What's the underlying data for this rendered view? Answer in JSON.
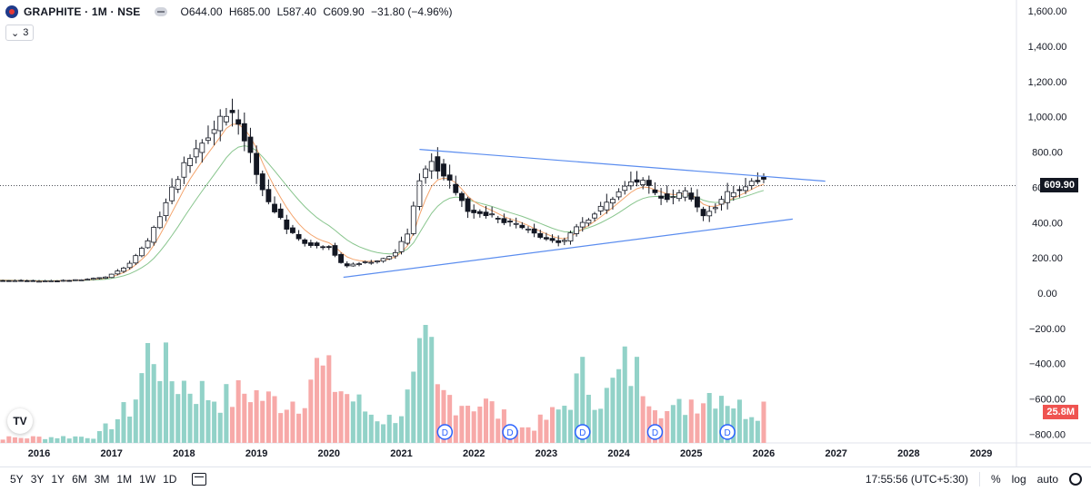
{
  "header": {
    "symbol": "GRAPHITE · 1M · NSE",
    "open": "O644.00",
    "high": "H685.00",
    "low": "L587.40",
    "close": "C609.90",
    "change": "−31.80 (−4.96%)",
    "indicators_count": "3"
  },
  "price_tag": "609.90",
  "volume_tag": "25.8M",
  "logo_text": "TV",
  "bottom_bar": {
    "ranges": [
      "5Y",
      "3Y",
      "1Y",
      "6M",
      "3M",
      "1M",
      "1W",
      "1D"
    ],
    "clock": "17:55:56 (UTC+5:30)",
    "percent": "%",
    "log": "log",
    "auto": "auto"
  },
  "colors": {
    "up": "#ffffff",
    "down": "#131722",
    "vol_up": "#92d2c8",
    "vol_down": "#f7a9a8",
    "ema_fast": "#f4a46d",
    "ema_slow": "#88c58d",
    "trendline": "#5b8def",
    "price_tag_bg": "#131722",
    "vol_tag_bg": "#ef5350"
  },
  "chart_data": {
    "type": "candlestick",
    "y_axis": {
      "ticks": [
        1600,
        1400,
        1200,
        1000,
        800,
        600,
        400,
        200,
        0,
        -200,
        -400,
        -600,
        -800
      ],
      "tick_labels": [
        "1,600.00",
        "1,400.00",
        "1,200.00",
        "1,000.00",
        "800.00",
        "600.00",
        "400.00",
        "200.00",
        "0.00",
        "−200.00",
        "−400.00",
        "−600.00",
        "−800.00"
      ]
    },
    "x_axis": {
      "ticks": [
        2016,
        2017,
        2018,
        2019,
        2020,
        2021,
        2022,
        2023,
        2024,
        2025,
        2026,
        2027,
        2028,
        2029
      ],
      "tick_labels": [
        "2016",
        "2017",
        "2018",
        "2019",
        "2020",
        "2021",
        "2022",
        "2023",
        "2024",
        "2025",
        "2026",
        "2027",
        "2028",
        "2029"
      ]
    },
    "last_price": 609.9,
    "last_price_label": "609.90",
    "volume_last_label": "25.8M",
    "dividend_marker_label": "D",
    "dividend_markers": [
      2021.6,
      2022.5,
      2023.5,
      2024.5,
      2025.5
    ],
    "trendlines": [
      {
        "x1": 2021.25,
        "y1": 815,
        "x2": 2026.85,
        "y2": 635
      },
      {
        "x1": 2020.2,
        "y1": 90,
        "x2": 2026.4,
        "y2": 420
      }
    ],
    "anchors": [
      [
        2015.0,
        75
      ],
      [
        2016.0,
        68
      ],
      [
        2016.5,
        74
      ],
      [
        2016.9,
        88
      ],
      [
        2017.2,
        150
      ],
      [
        2017.5,
        290
      ],
      [
        2017.75,
        520
      ],
      [
        2018.0,
        720
      ],
      [
        2018.2,
        820
      ],
      [
        2018.4,
        920
      ],
      [
        2018.6,
        1040
      ],
      [
        2018.75,
        960
      ],
      [
        2018.95,
        760
      ],
      [
        2019.1,
        560
      ],
      [
        2019.4,
        380
      ],
      [
        2019.6,
        300
      ],
      [
        2019.8,
        270
      ],
      [
        2020.0,
        265
      ],
      [
        2020.2,
        150
      ],
      [
        2020.4,
        170
      ],
      [
        2020.7,
        185
      ],
      [
        2020.9,
        220
      ],
      [
        2021.1,
        350
      ],
      [
        2021.25,
        650
      ],
      [
        2021.4,
        760
      ],
      [
        2021.7,
        620
      ],
      [
        2021.9,
        470
      ],
      [
        2022.2,
        450
      ],
      [
        2022.4,
        400
      ],
      [
        2022.6,
        390
      ],
      [
        2022.85,
        330
      ],
      [
        2023.1,
        290
      ],
      [
        2023.25,
        300
      ],
      [
        2023.4,
        380
      ],
      [
        2023.6,
        430
      ],
      [
        2023.8,
        500
      ],
      [
        2024.0,
        570
      ],
      [
        2024.2,
        640
      ],
      [
        2024.35,
        620
      ],
      [
        2024.5,
        560
      ],
      [
        2024.7,
        540
      ],
      [
        2024.95,
        580
      ],
      [
        2025.15,
        440
      ],
      [
        2025.3,
        480
      ],
      [
        2025.5,
        560
      ],
      [
        2025.7,
        590
      ],
      [
        2025.9,
        640
      ],
      [
        2025.99,
        645
      ],
      [
        2026.05,
        610
      ]
    ],
    "volume_anchors": [
      [
        2015.0,
        4
      ],
      [
        2016.8,
        6
      ],
      [
        2017.0,
        18
      ],
      [
        2017.3,
        35
      ],
      [
        2017.55,
        92
      ],
      [
        2017.8,
        60
      ],
      [
        2018.0,
        55
      ],
      [
        2018.3,
        45
      ],
      [
        2018.6,
        40
      ],
      [
        2018.9,
        48
      ],
      [
        2019.2,
        38
      ],
      [
        2019.6,
        40
      ],
      [
        2019.8,
        70
      ],
      [
        2020.2,
        48
      ],
      [
        2020.5,
        30
      ],
      [
        2020.8,
        20
      ],
      [
        2021.0,
        30
      ],
      [
        2021.2,
        55
      ],
      [
        2021.35,
        100
      ],
      [
        2021.5,
        45
      ],
      [
        2021.8,
        40
      ],
      [
        2022.2,
        35
      ],
      [
        2022.6,
        12
      ],
      [
        2022.9,
        18
      ],
      [
        2023.2,
        30
      ],
      [
        2023.5,
        60
      ],
      [
        2023.8,
        40
      ],
      [
        2024.1,
        70
      ],
      [
        2024.4,
        55
      ],
      [
        2024.7,
        25
      ],
      [
        2025.0,
        40
      ],
      [
        2025.4,
        50
      ],
      [
        2025.7,
        30
      ],
      [
        2025.99,
        35
      ],
      [
        2026.05,
        32
      ]
    ]
  }
}
